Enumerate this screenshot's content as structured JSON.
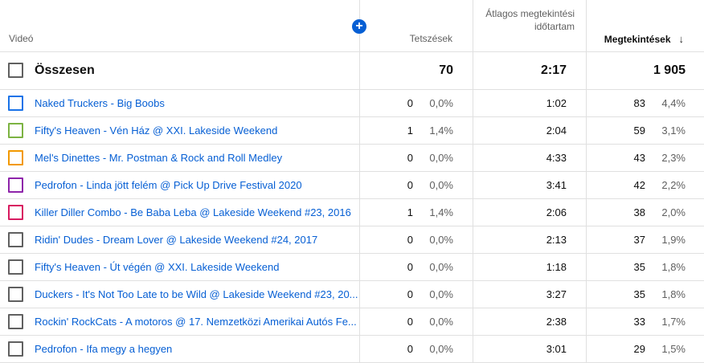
{
  "header": {
    "video": "Videó",
    "likes": "Tetszések",
    "avg_duration": "Átlagos megtekintési időtartam",
    "views": "Megtekintések",
    "sort_icon": "arrow-down-icon",
    "add_icon": "plus-icon"
  },
  "total": {
    "label": "Összesen",
    "likes": "70",
    "avg_duration": "2:17",
    "views": "1 905"
  },
  "rows": [
    {
      "title": "Naked Truckers - Big Boobs",
      "likes": "0",
      "likes_pct": "0,0%",
      "avg": "1:02",
      "views": "83",
      "views_pct": "4,4%",
      "color": "#1a73e8"
    },
    {
      "title": "Fifty's Heaven - Vén Ház @ XXI. Lakeside Weekend",
      "likes": "1",
      "likes_pct": "1,4%",
      "avg": "2:04",
      "views": "59",
      "views_pct": "3,1%",
      "color": "#7cb342"
    },
    {
      "title": "Mel's Dinettes - Mr. Postman & Rock and Roll Medley",
      "likes": "0",
      "likes_pct": "0,0%",
      "avg": "4:33",
      "views": "43",
      "views_pct": "2,3%",
      "color": "#f29900"
    },
    {
      "title": "Pedrofon - Linda jött felém @ Pick Up Drive Festival 2020",
      "likes": "0",
      "likes_pct": "0,0%",
      "avg": "3:41",
      "views": "42",
      "views_pct": "2,2%",
      "color": "#8e24aa"
    },
    {
      "title": "Killer Diller Combo - Be Baba Leba @ Lakeside Weekend #23, 2016",
      "likes": "1",
      "likes_pct": "1,4%",
      "avg": "2:06",
      "views": "38",
      "views_pct": "2,0%",
      "color": "#d81b60"
    },
    {
      "title": "Ridin' Dudes - Dream Lover @ Lakeside Weekend #24, 2017",
      "likes": "0",
      "likes_pct": "0,0%",
      "avg": "2:13",
      "views": "37",
      "views_pct": "1,9%",
      "color": "#606060"
    },
    {
      "title": "Fifty's Heaven - Út végén @ XXI. Lakeside Weekend",
      "likes": "0",
      "likes_pct": "0,0%",
      "avg": "1:18",
      "views": "35",
      "views_pct": "1,8%",
      "color": "#606060"
    },
    {
      "title": "Duckers - It's Not Too Late to be Wild @ Lakeside Weekend #23, 20...",
      "likes": "0",
      "likes_pct": "0,0%",
      "avg": "3:27",
      "views": "35",
      "views_pct": "1,8%",
      "color": "#606060"
    },
    {
      "title": "Rockin' RockCats - A motoros @ 17. Nemzetközi Amerikai Autós Fe...",
      "likes": "0",
      "likes_pct": "0,0%",
      "avg": "2:38",
      "views": "33",
      "views_pct": "1,7%",
      "color": "#606060"
    },
    {
      "title": "Pedrofon - Ifa megy a hegyen",
      "likes": "0",
      "likes_pct": "0,0%",
      "avg": "3:01",
      "views": "29",
      "views_pct": "1,5%",
      "color": "#606060"
    }
  ]
}
